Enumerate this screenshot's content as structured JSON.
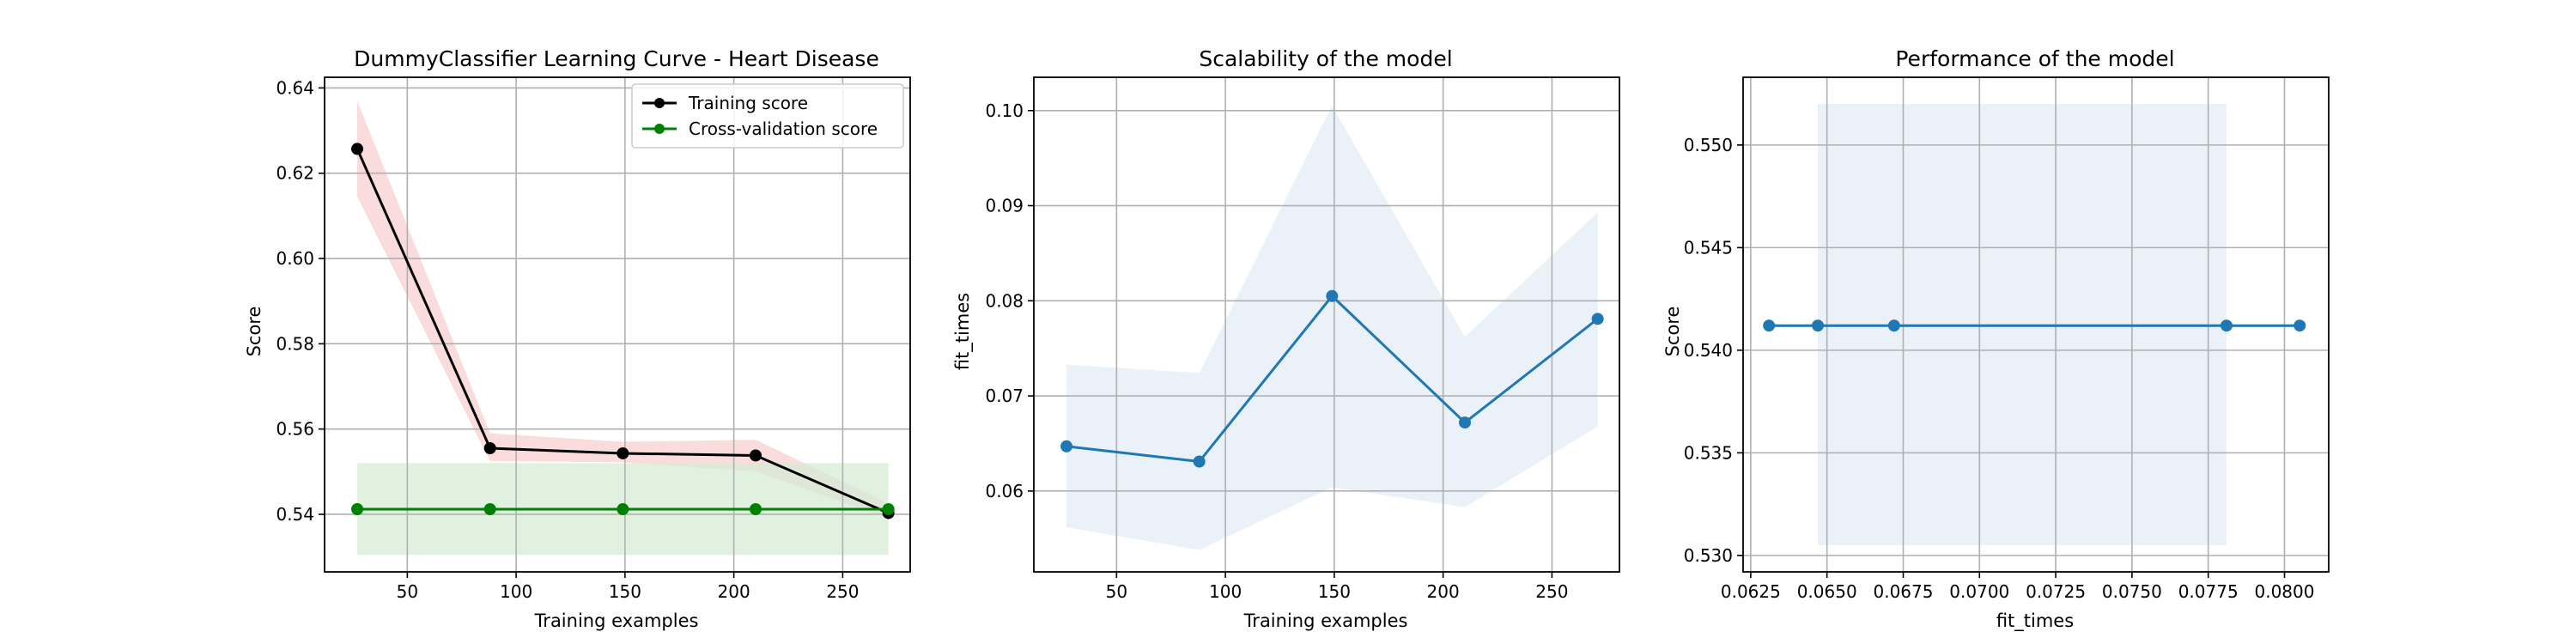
{
  "chart_data": [
    {
      "type": "line",
      "title": "DummyClassifier Learning Curve - Heart Disease",
      "xlabel": "Training examples",
      "ylabel": "Score",
      "xlim": [
        12,
        281
      ],
      "ylim": [
        0.5265,
        0.6425
      ],
      "xticks": [
        50,
        100,
        150,
        200,
        250
      ],
      "yticks": [
        0.54,
        0.56,
        0.58,
        0.6,
        0.62,
        0.64
      ],
      "ytick_decimals": 2,
      "grid": true,
      "legend": "top-right",
      "series": [
        {
          "name": "Training score",
          "color": "#000000",
          "marker": true,
          "x": [
            27,
            88,
            149,
            210,
            271
          ],
          "y": [
            0.6257,
            0.5555,
            0.5543,
            0.5538,
            0.5403
          ],
          "band": {
            "lower": [
              0.6145,
              0.5525,
              0.5522,
              0.5501,
              0.539
            ],
            "upper": [
              0.637,
              0.559,
              0.557,
              0.5575,
              0.5425
            ],
            "color": "#f8d0d0"
          }
        },
        {
          "name": "Cross-validation score",
          "color": "#008000",
          "marker": true,
          "x": [
            27,
            88,
            149,
            210,
            271
          ],
          "y": [
            0.5412,
            0.5412,
            0.5412,
            0.5412,
            0.5412
          ],
          "band": {
            "lower": [
              0.5305,
              0.5305,
              0.5305,
              0.5305,
              0.5305
            ],
            "upper": [
              0.552,
              0.552,
              0.552,
              0.552,
              0.552
            ],
            "color": "#d6ecd6"
          }
        }
      ]
    },
    {
      "type": "line",
      "title": "Scalability of the model",
      "xlabel": "Training examples",
      "ylabel": "fit_times",
      "xlim": [
        12,
        281
      ],
      "ylim": [
        0.0515,
        0.1035
      ],
      "xticks": [
        50,
        100,
        150,
        200,
        250
      ],
      "yticks": [
        0.06,
        0.07,
        0.08,
        0.09,
        0.1
      ],
      "ytick_decimals": 2,
      "grid": true,
      "series": [
        {
          "color": "#1f77b4",
          "marker": true,
          "x": [
            27,
            88,
            149,
            210,
            271
          ],
          "y": [
            0.0647,
            0.0631,
            0.0805,
            0.0672,
            0.0781
          ],
          "band": {
            "lower": [
              0.0562,
              0.0538,
              0.0604,
              0.0583,
              0.0668
            ],
            "upper": [
              0.0733,
              0.0724,
              0.1005,
              0.0762,
              0.0893
            ],
            "color": "#e3ecf6"
          }
        }
      ]
    },
    {
      "type": "line",
      "title": "Performance of the model",
      "xlabel": "fit_times",
      "ylabel": "Score",
      "xlim": [
        0.06225,
        0.08145
      ],
      "ylim": [
        0.5292,
        0.5533
      ],
      "xticks": [
        0.0625,
        0.065,
        0.0675,
        0.07,
        0.0725,
        0.075,
        0.0775,
        0.08
      ],
      "xtick_decimals": 4,
      "yticks": [
        0.53,
        0.535,
        0.54,
        0.545,
        0.55
      ],
      "ytick_decimals": 3,
      "grid": true,
      "series": [
        {
          "color": "#1f77b4",
          "marker": true,
          "x": [
            0.0631,
            0.0647,
            0.0672,
            0.0781,
            0.0805
          ],
          "y": [
            0.5412,
            0.5412,
            0.5412,
            0.5412,
            0.5412
          ],
          "band": {
            "x": [
              0.0647,
              0.0781
            ],
            "lower": [
              0.5305,
              0.5305
            ],
            "upper": [
              0.552,
              0.552
            ],
            "color": "#e3ecf6"
          }
        }
      ]
    }
  ]
}
